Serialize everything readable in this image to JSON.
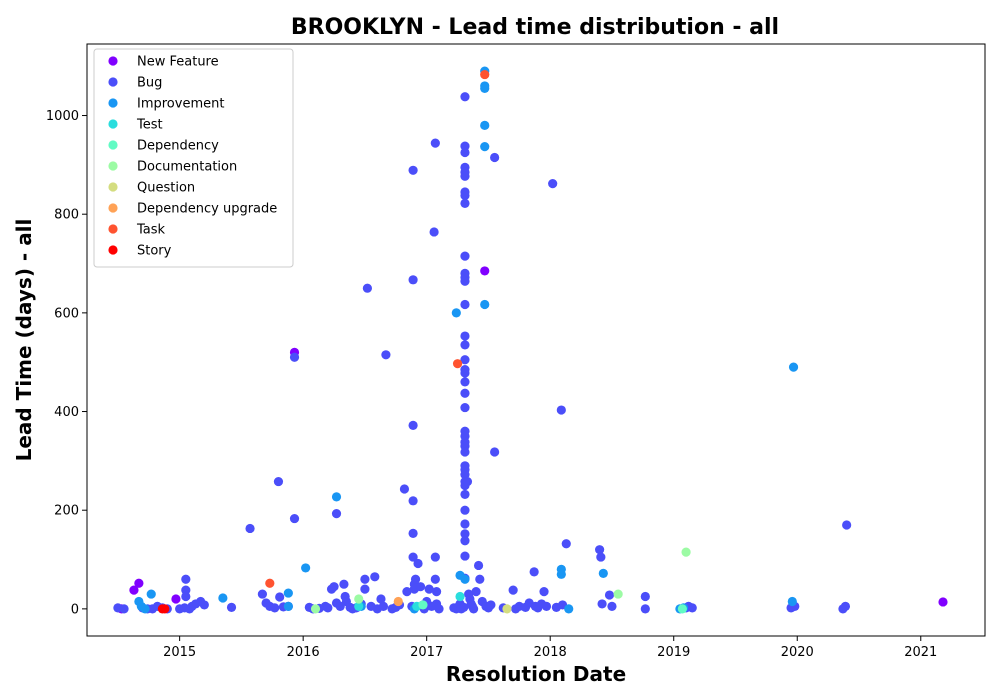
{
  "chart_data": {
    "type": "scatter",
    "title": "BROOKLYN - Lead time distribution - all",
    "xlabel": "Resolution Date",
    "ylabel": "Lead Time (days) - all",
    "xlim": [
      2014.25,
      2021.52
    ],
    "ylim": [
      -55,
      1145
    ],
    "xticks": [
      2015,
      2016,
      2017,
      2018,
      2019,
      2020,
      2021
    ],
    "xtick_labels": [
      "2015",
      "2016",
      "2017",
      "2018",
      "2019",
      "2020",
      "2021"
    ],
    "yticks": [
      0,
      200,
      400,
      600,
      800,
      1000
    ],
    "ytick_labels": [
      "0",
      "200",
      "400",
      "600",
      "800",
      "1000"
    ],
    "grid": false,
    "legend_position": "top-left",
    "series": [
      {
        "name": "New Feature",
        "color": "#8000ff",
        "points": [
          [
            2014.53,
            0
          ],
          [
            2014.63,
            38
          ],
          [
            2014.67,
            52
          ],
          [
            2014.97,
            20
          ],
          [
            2015.93,
            520
          ],
          [
            2017.47,
            685
          ],
          [
            2021.18,
            14
          ]
        ]
      },
      {
        "name": "Bug",
        "color": "#4b4ef9",
        "points": [
          [
            2014.5,
            2
          ],
          [
            2014.55,
            0
          ],
          [
            2014.7,
            2
          ],
          [
            2014.74,
            0
          ],
          [
            2014.78,
            0
          ],
          [
            2014.82,
            5
          ],
          [
            2014.86,
            2
          ],
          [
            2014.9,
            0
          ],
          [
            2015.0,
            0
          ],
          [
            2015.04,
            2
          ],
          [
            2015.05,
            38
          ],
          [
            2015.05,
            25
          ],
          [
            2015.05,
            60
          ],
          [
            2015.08,
            0
          ],
          [
            2015.1,
            5
          ],
          [
            2015.13,
            10
          ],
          [
            2015.17,
            15
          ],
          [
            2015.2,
            8
          ],
          [
            2015.42,
            3
          ],
          [
            2015.57,
            163
          ],
          [
            2015.67,
            30
          ],
          [
            2015.7,
            12
          ],
          [
            2015.73,
            5
          ],
          [
            2015.77,
            2
          ],
          [
            2015.8,
            258
          ],
          [
            2015.81,
            24
          ],
          [
            2015.84,
            4
          ],
          [
            2015.88,
            5
          ],
          [
            2015.93,
            183
          ],
          [
            2015.93,
            510
          ],
          [
            2016.05,
            3
          ],
          [
            2016.08,
            0
          ],
          [
            2016.13,
            1
          ],
          [
            2016.18,
            5
          ],
          [
            2016.2,
            2
          ],
          [
            2016.23,
            40
          ],
          [
            2016.25,
            45
          ],
          [
            2016.27,
            193
          ],
          [
            2016.27,
            12
          ],
          [
            2016.3,
            5
          ],
          [
            2016.33,
            50
          ],
          [
            2016.34,
            25
          ],
          [
            2016.35,
            15
          ],
          [
            2016.38,
            3
          ],
          [
            2016.4,
            0
          ],
          [
            2016.43,
            2
          ],
          [
            2016.47,
            10
          ],
          [
            2016.5,
            60
          ],
          [
            2016.5,
            40
          ],
          [
            2016.52,
            650
          ],
          [
            2016.55,
            5
          ],
          [
            2016.58,
            65
          ],
          [
            2016.6,
            0
          ],
          [
            2016.63,
            20
          ],
          [
            2016.65,
            5
          ],
          [
            2016.67,
            515
          ],
          [
            2016.72,
            0
          ],
          [
            2016.75,
            3
          ],
          [
            2016.78,
            8
          ],
          [
            2016.82,
            243
          ],
          [
            2016.84,
            35
          ],
          [
            2016.88,
            5
          ],
          [
            2016.89,
            889
          ],
          [
            2016.89,
            667
          ],
          [
            2016.89,
            372
          ],
          [
            2016.89,
            219
          ],
          [
            2016.89,
            153
          ],
          [
            2016.89,
            105
          ],
          [
            2016.9,
            40
          ],
          [
            2016.9,
            50
          ],
          [
            2016.91,
            60
          ],
          [
            2016.93,
            92
          ],
          [
            2016.95,
            45
          ],
          [
            2016.97,
            8
          ],
          [
            2016.98,
            0
          ],
          [
            2017.0,
            15
          ],
          [
            2017.02,
            40
          ],
          [
            2017.04,
            5
          ],
          [
            2017.06,
            764
          ],
          [
            2017.07,
            944
          ],
          [
            2017.07,
            105
          ],
          [
            2017.07,
            60
          ],
          [
            2017.08,
            35
          ],
          [
            2017.08,
            10
          ],
          [
            2017.1,
            0
          ],
          [
            2017.22,
            2
          ],
          [
            2017.24,
            0
          ],
          [
            2017.26,
            5
          ],
          [
            2017.27,
            10
          ],
          [
            2017.28,
            0
          ],
          [
            2017.3,
            3
          ],
          [
            2017.31,
            1038
          ],
          [
            2017.31,
            938
          ],
          [
            2017.31,
            925
          ],
          [
            2017.31,
            895
          ],
          [
            2017.31,
            885
          ],
          [
            2017.31,
            877
          ],
          [
            2017.31,
            845
          ],
          [
            2017.31,
            838
          ],
          [
            2017.31,
            822
          ],
          [
            2017.31,
            715
          ],
          [
            2017.31,
            680
          ],
          [
            2017.31,
            672
          ],
          [
            2017.31,
            664
          ],
          [
            2017.31,
            617
          ],
          [
            2017.31,
            553
          ],
          [
            2017.31,
            535
          ],
          [
            2017.31,
            505
          ],
          [
            2017.31,
            485
          ],
          [
            2017.31,
            478
          ],
          [
            2017.31,
            460
          ],
          [
            2017.31,
            437
          ],
          [
            2017.31,
            408
          ],
          [
            2017.31,
            360
          ],
          [
            2017.31,
            350
          ],
          [
            2017.31,
            338
          ],
          [
            2017.31,
            330
          ],
          [
            2017.31,
            318
          ],
          [
            2017.31,
            290
          ],
          [
            2017.31,
            282
          ],
          [
            2017.31,
            272
          ],
          [
            2017.31,
            258
          ],
          [
            2017.31,
            250
          ],
          [
            2017.31,
            232
          ],
          [
            2017.31,
            200
          ],
          [
            2017.31,
            172
          ],
          [
            2017.31,
            152
          ],
          [
            2017.31,
            138
          ],
          [
            2017.31,
            107
          ],
          [
            2017.31,
            62
          ],
          [
            2017.33,
            258
          ],
          [
            2017.34,
            30
          ],
          [
            2017.35,
            20
          ],
          [
            2017.36,
            10
          ],
          [
            2017.37,
            5
          ],
          [
            2017.38,
            0
          ],
          [
            2017.4,
            35
          ],
          [
            2017.42,
            88
          ],
          [
            2017.43,
            60
          ],
          [
            2017.45,
            15
          ],
          [
            2017.48,
            5
          ],
          [
            2017.5,
            2
          ],
          [
            2017.52,
            8
          ],
          [
            2017.55,
            915
          ],
          [
            2017.55,
            318
          ],
          [
            2017.62,
            2
          ],
          [
            2017.7,
            38
          ],
          [
            2017.72,
            0
          ],
          [
            2017.75,
            5
          ],
          [
            2017.8,
            3
          ],
          [
            2017.83,
            12
          ],
          [
            2017.87,
            75
          ],
          [
            2017.88,
            5
          ],
          [
            2017.9,
            2
          ],
          [
            2017.93,
            10
          ],
          [
            2017.95,
            35
          ],
          [
            2017.97,
            5
          ],
          [
            2018.02,
            862
          ],
          [
            2018.05,
            3
          ],
          [
            2018.09,
            403
          ],
          [
            2018.1,
            8
          ],
          [
            2018.13,
            132
          ],
          [
            2018.4,
            120
          ],
          [
            2018.41,
            105
          ],
          [
            2018.42,
            10
          ],
          [
            2018.48,
            28
          ],
          [
            2018.5,
            5
          ],
          [
            2018.77,
            25
          ],
          [
            2018.77,
            0
          ],
          [
            2019.1,
            2
          ],
          [
            2019.12,
            5
          ],
          [
            2019.15,
            2
          ],
          [
            2019.95,
            2
          ],
          [
            2019.98,
            5
          ],
          [
            2020.37,
            0
          ],
          [
            2020.39,
            5
          ],
          [
            2020.4,
            170
          ]
        ]
      },
      {
        "name": "Improvement",
        "color": "#1996f3",
        "points": [
          [
            2014.67,
            15
          ],
          [
            2014.69,
            5
          ],
          [
            2014.72,
            0
          ],
          [
            2014.77,
            30
          ],
          [
            2015.35,
            22
          ],
          [
            2015.88,
            32
          ],
          [
            2015.88,
            5
          ],
          [
            2016.02,
            83
          ],
          [
            2016.27,
            227
          ],
          [
            2016.47,
            5
          ],
          [
            2016.9,
            0
          ],
          [
            2017.24,
            600
          ],
          [
            2017.27,
            68
          ],
          [
            2017.31,
            60
          ],
          [
            2017.47,
            1090
          ],
          [
            2017.47,
            1060
          ],
          [
            2017.47,
            1055
          ],
          [
            2017.47,
            980
          ],
          [
            2017.47,
            937
          ],
          [
            2017.47,
            617
          ],
          [
            2018.09,
            80
          ],
          [
            2018.09,
            70
          ],
          [
            2018.15,
            0
          ],
          [
            2018.43,
            72
          ],
          [
            2019.05,
            0
          ],
          [
            2019.08,
            2
          ],
          [
            2019.96,
            15
          ],
          [
            2019.97,
            490
          ]
        ]
      },
      {
        "name": "Test",
        "color": "#2adddd",
        "points": [
          [
            2016.45,
            5
          ],
          [
            2016.92,
            5
          ],
          [
            2017.27,
            25
          ]
        ]
      },
      {
        "name": "Dependency",
        "color": "#62fbc4",
        "points": [
          [
            2016.97,
            8
          ],
          [
            2019.07,
            0
          ]
        ]
      },
      {
        "name": "Documentation",
        "color": "#9cfba4",
        "points": [
          [
            2016.1,
            0
          ],
          [
            2016.45,
            20
          ],
          [
            2018.55,
            30
          ],
          [
            2019.1,
            115
          ]
        ]
      },
      {
        "name": "Question",
        "color": "#d4dd80",
        "points": [
          [
            2017.65,
            0
          ]
        ]
      },
      {
        "name": "Dependency upgrade",
        "color": "#ffa256",
        "points": [
          [
            2016.77,
            15
          ]
        ]
      },
      {
        "name": "Task",
        "color": "#ff5330",
        "points": [
          [
            2015.73,
            52
          ],
          [
            2017.25,
            497
          ],
          [
            2017.47,
            1083
          ]
        ]
      },
      {
        "name": "Story",
        "color": "#ff0000",
        "points": [
          [
            2014.86,
            0
          ],
          [
            2014.88,
            0
          ]
        ]
      }
    ]
  }
}
